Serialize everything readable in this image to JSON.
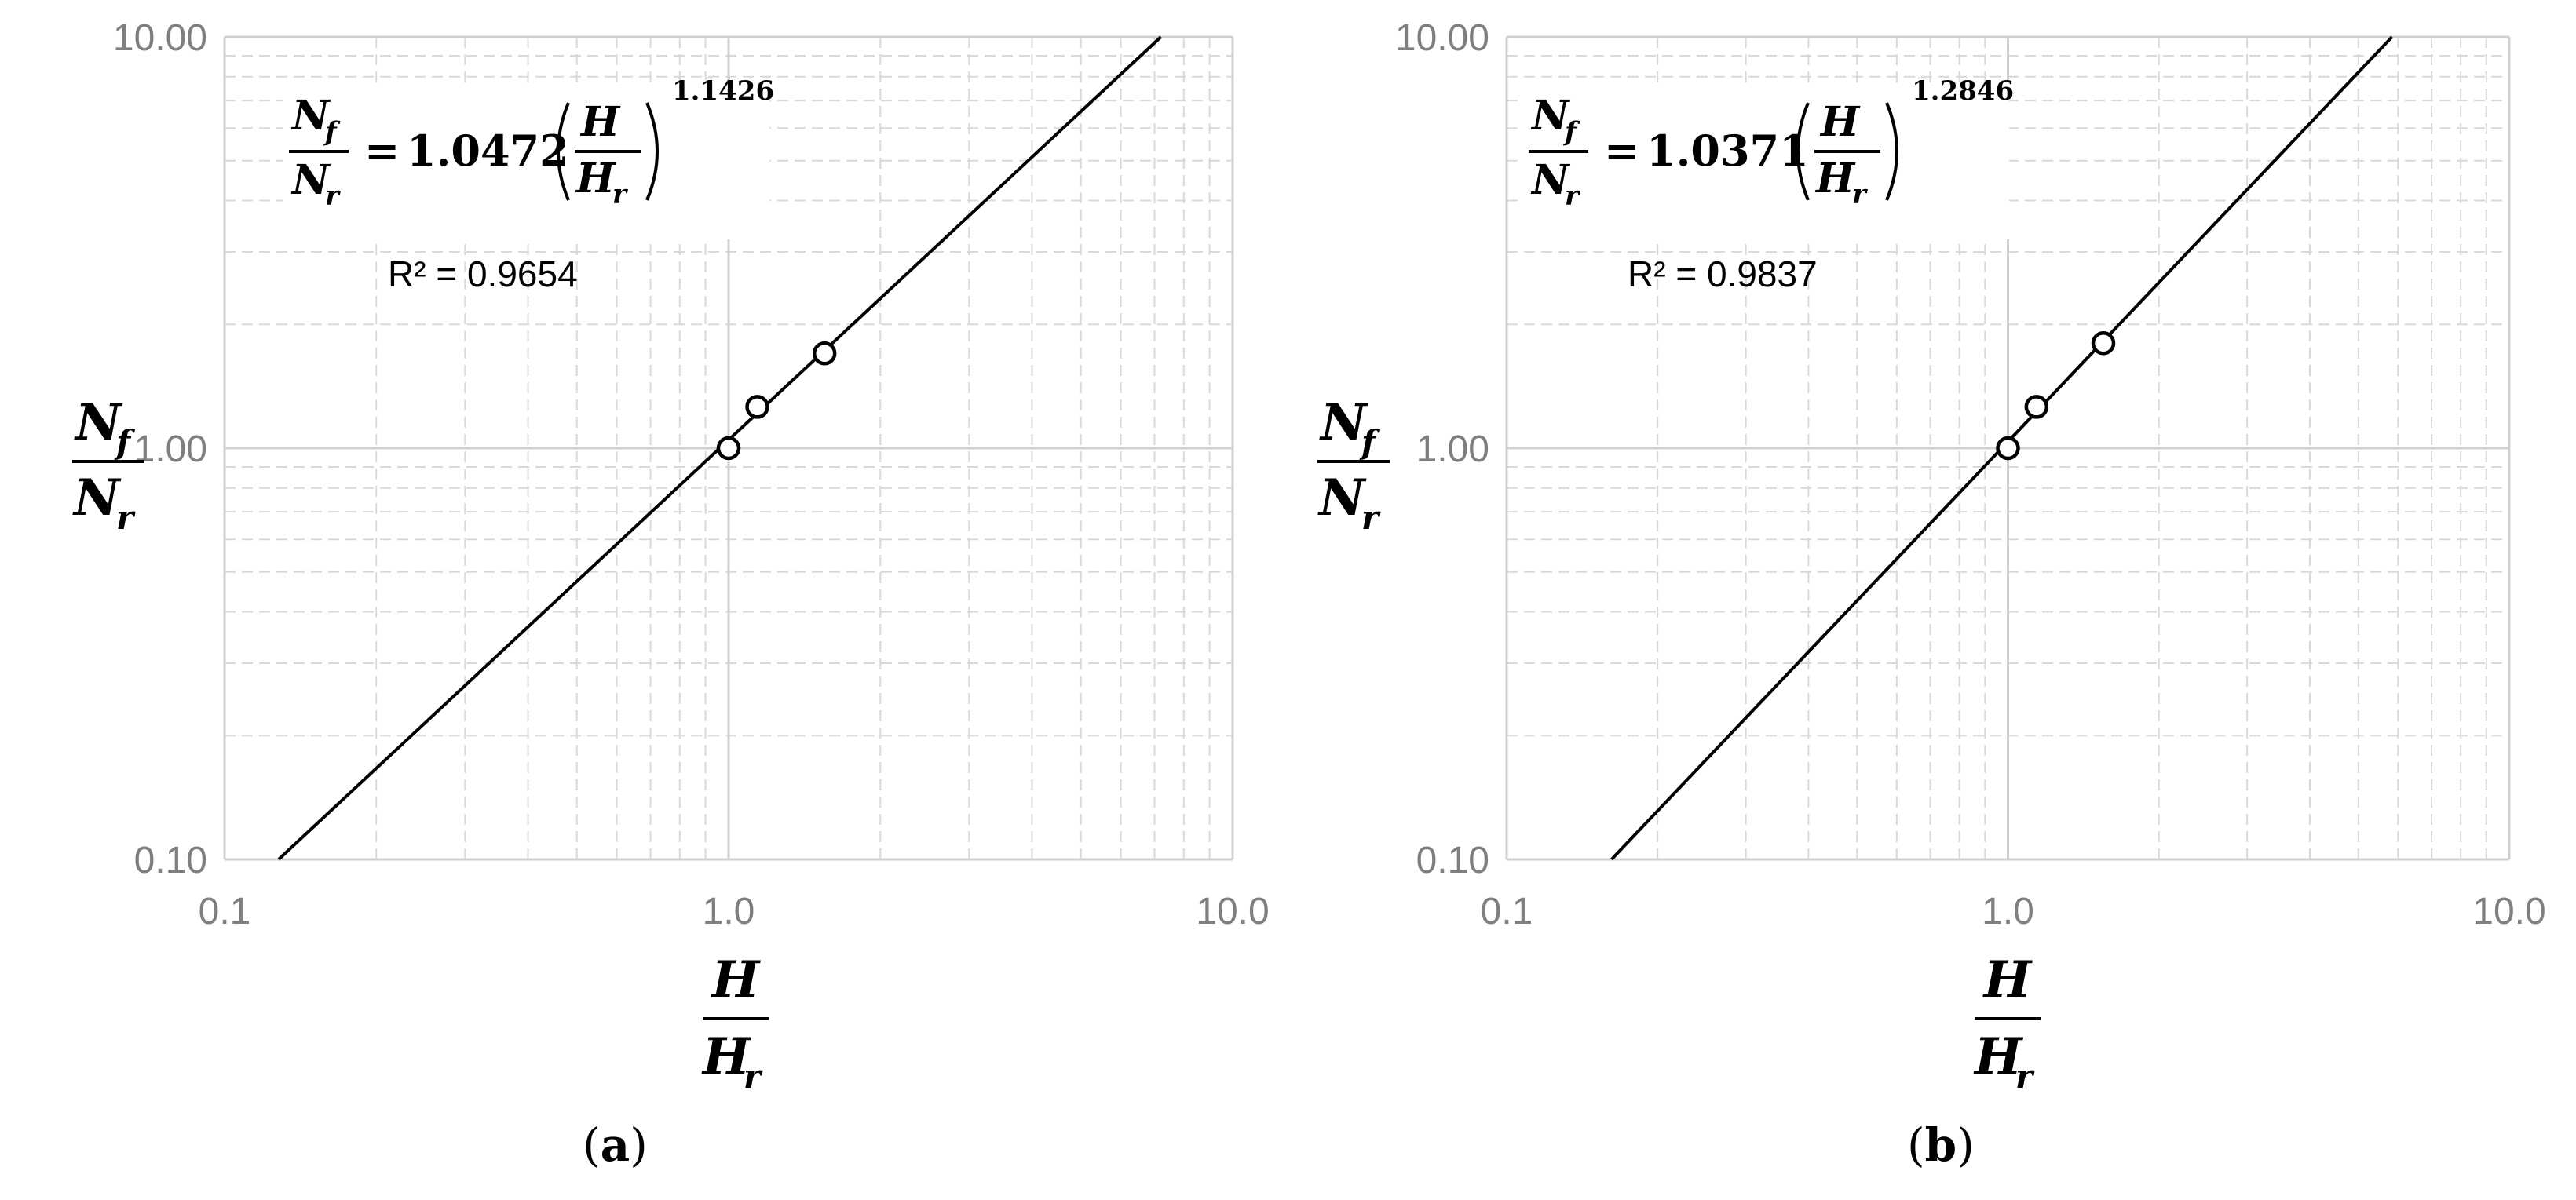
{
  "chart_data": [
    {
      "type": "scatter",
      "panel_label": "a",
      "x_scale": "log",
      "y_scale": "log",
      "xlim": [
        0.1,
        10.0
      ],
      "ylim": [
        0.1,
        10.0
      ],
      "x_tick_labels": [
        "0.1",
        "1.0",
        "10.0"
      ],
      "y_tick_labels": [
        "0.10",
        "1.00",
        "10.00"
      ],
      "xlabel": {
        "num": "H",
        "den_main": "H",
        "den_sub": "r"
      },
      "ylabel": {
        "num_main": "N",
        "num_sub": "f",
        "den_main": "N",
        "den_sub": "r"
      },
      "grid": true,
      "points": [
        {
          "x": 1.0,
          "y": 1.0
        },
        {
          "x": 1.14,
          "y": 1.26
        },
        {
          "x": 1.55,
          "y": 1.7
        }
      ],
      "fit": {
        "a": 1.0472,
        "b": 1.1426
      },
      "equation": {
        "coef": "1.0472",
        "exp": "1.1426"
      },
      "r2": "R² = 0.9654"
    },
    {
      "type": "scatter",
      "panel_label": "b",
      "x_scale": "log",
      "y_scale": "log",
      "xlim": [
        0.1,
        10.0
      ],
      "ylim": [
        0.1,
        10.0
      ],
      "x_tick_labels": [
        "0.1",
        "1.0",
        "10.0"
      ],
      "y_tick_labels": [
        "0.10",
        "1.00",
        "10.00"
      ],
      "xlabel": {
        "num": "H",
        "den_main": "H",
        "den_sub": "r"
      },
      "ylabel": {
        "num_main": "N",
        "num_sub": "f",
        "den_main": "N",
        "den_sub": "r"
      },
      "grid": true,
      "points": [
        {
          "x": 1.0,
          "y": 1.0
        },
        {
          "x": 1.14,
          "y": 1.26
        },
        {
          "x": 1.55,
          "y": 1.8
        }
      ],
      "fit": {
        "a": 1.0371,
        "b": 1.2846
      },
      "equation": {
        "coef": "1.0371",
        "exp": "1.2846"
      },
      "r2": "R² = 0.9837"
    }
  ],
  "equation_symbols": {
    "n": "N",
    "f": "f",
    "r": "r",
    "h": "H",
    "equals": "="
  },
  "colors": {
    "grid": "#d9d9d9",
    "axis": "#d0d0d0",
    "tick_text": "#7f7f7f",
    "line": "#000000",
    "marker": "#000000"
  }
}
